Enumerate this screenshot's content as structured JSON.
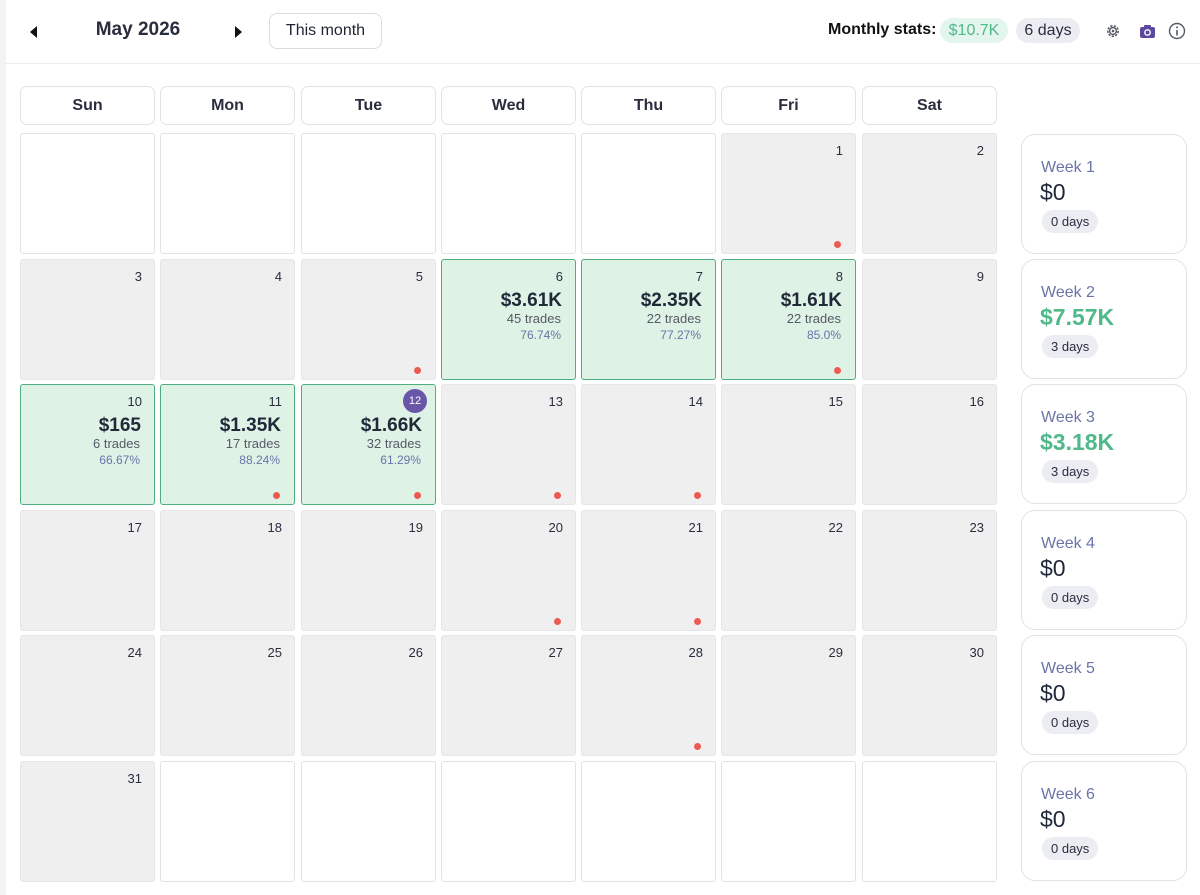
{
  "header": {
    "month_title": "May 2026",
    "this_month_label": "This month",
    "stats_label": "Monthly stats:",
    "stats_pnl": "$10.7K",
    "stats_days": "6 days",
    "icons": [
      "caret-left-icon",
      "caret-right-icon",
      "gear-icon",
      "camera-icon",
      "info-icon"
    ],
    "colors": {
      "positive": "#4fb98a",
      "accent": "#6a56a8",
      "trade_day_bg": "#dff2e6",
      "loss_dot": "#ec5a52"
    }
  },
  "weekdays": [
    "Sun",
    "Mon",
    "Tue",
    "Wed",
    "Thu",
    "Fri",
    "Sat"
  ],
  "days": [
    {
      "day": "",
      "in_month": false
    },
    {
      "day": "",
      "in_month": false
    },
    {
      "day": "",
      "in_month": false
    },
    {
      "day": "",
      "in_month": false
    },
    {
      "day": "",
      "in_month": false
    },
    {
      "day": "1",
      "in_month": true,
      "dot": true
    },
    {
      "day": "2",
      "in_month": true
    },
    {
      "day": "3",
      "in_month": true
    },
    {
      "day": "4",
      "in_month": true
    },
    {
      "day": "5",
      "in_month": true,
      "dot": true
    },
    {
      "day": "6",
      "in_month": true,
      "pnl": "$3.61K",
      "trades": "45 trades",
      "winrate": "76.74%"
    },
    {
      "day": "7",
      "in_month": true,
      "pnl": "$2.35K",
      "trades": "22 trades",
      "winrate": "77.27%"
    },
    {
      "day": "8",
      "in_month": true,
      "pnl": "$1.61K",
      "trades": "22 trades",
      "winrate": "85.0%",
      "dot": true
    },
    {
      "day": "9",
      "in_month": true
    },
    {
      "day": "10",
      "in_month": true,
      "pnl": "$165",
      "trades": "6 trades",
      "winrate": "66.67%"
    },
    {
      "day": "11",
      "in_month": true,
      "pnl": "$1.35K",
      "trades": "17 trades",
      "winrate": "88.24%",
      "dot": true
    },
    {
      "day": "12",
      "in_month": true,
      "pnl": "$1.66K",
      "trades": "32 trades",
      "winrate": "61.29%",
      "dot": true,
      "today": true
    },
    {
      "day": "13",
      "in_month": true,
      "dot": true
    },
    {
      "day": "14",
      "in_month": true,
      "dot": true
    },
    {
      "day": "15",
      "in_month": true
    },
    {
      "day": "16",
      "in_month": true
    },
    {
      "day": "17",
      "in_month": true
    },
    {
      "day": "18",
      "in_month": true
    },
    {
      "day": "19",
      "in_month": true
    },
    {
      "day": "20",
      "in_month": true,
      "dot": true
    },
    {
      "day": "21",
      "in_month": true,
      "dot": true
    },
    {
      "day": "22",
      "in_month": true
    },
    {
      "day": "23",
      "in_month": true
    },
    {
      "day": "24",
      "in_month": true
    },
    {
      "day": "25",
      "in_month": true
    },
    {
      "day": "26",
      "in_month": true
    },
    {
      "day": "27",
      "in_month": true
    },
    {
      "day": "28",
      "in_month": true,
      "dot": true
    },
    {
      "day": "29",
      "in_month": true
    },
    {
      "day": "30",
      "in_month": true
    },
    {
      "day": "31",
      "in_month": true
    },
    {
      "day": "",
      "in_month": false
    },
    {
      "day": "",
      "in_month": false
    },
    {
      "day": "",
      "in_month": false
    },
    {
      "day": "",
      "in_month": false
    },
    {
      "day": "",
      "in_month": false
    },
    {
      "day": "",
      "in_month": false
    }
  ],
  "weeks": [
    {
      "label": "Week 1",
      "value": "$0",
      "days": "0 days",
      "positive": false
    },
    {
      "label": "Week 2",
      "value": "$7.57K",
      "days": "3 days",
      "positive": true
    },
    {
      "label": "Week 3",
      "value": "$3.18K",
      "days": "3 days",
      "positive": true
    },
    {
      "label": "Week 4",
      "value": "$0",
      "days": "0 days",
      "positive": false
    },
    {
      "label": "Week 5",
      "value": "$0",
      "days": "0 days",
      "positive": false
    },
    {
      "label": "Week 6",
      "value": "$0",
      "days": "0 days",
      "positive": false
    }
  ]
}
